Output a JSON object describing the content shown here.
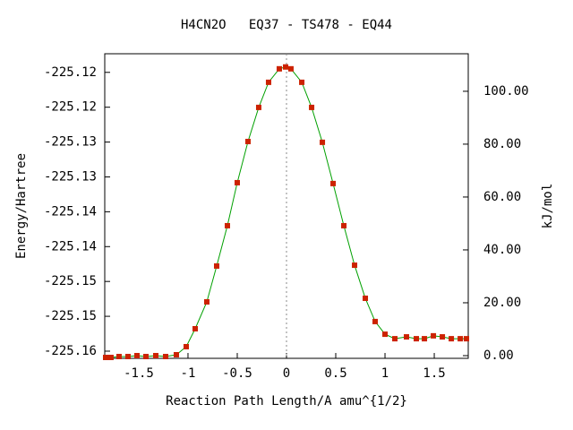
{
  "chart_data": {
    "type": "line",
    "title": "H4CN2O   EQ37 - TS478 - EQ44",
    "xlabel": "Reaction Path Length/A amu^{1/2}",
    "ylabel": "Energy/Hartree",
    "y2label": "kJ/mol",
    "xlim": [
      -1.845,
      1.845
    ],
    "xticks": [
      -1.5,
      -1,
      -0.5,
      0,
      0.5,
      1,
      1.5
    ],
    "ylim": [
      -225.16103,
      -225.11733
    ],
    "yticks": [
      -225.16,
      {
        "value": -225.155,
        "label": "-225.15"
      },
      -225.15,
      {
        "value": -225.145,
        "label": "-225.14"
      },
      -225.14,
      {
        "value": -225.135,
        "label": "-225.13"
      },
      -225.13,
      {
        "value": -225.125,
        "label": "-225.12"
      },
      -225.12
    ],
    "y2lim": [
      -1.02,
      114.2
    ],
    "y2ticks": [
      {
        "value": 0,
        "label": "0.00"
      },
      {
        "value": 20,
        "label": "20.00"
      },
      {
        "value": 40,
        "label": "40.00"
      },
      {
        "value": 60,
        "label": "60.00"
      },
      {
        "value": 80,
        "label": "80.00"
      },
      {
        "value": 100,
        "label": "100.00"
      }
    ],
    "vline": 0,
    "x": [
      -1.836,
      -1.782,
      -1.7,
      -1.609,
      -1.518,
      -1.427,
      -1.327,
      -1.227,
      -1.118,
      -1.018,
      -0.927,
      -0.809,
      -0.709,
      -0.6,
      -0.5,
      -0.391,
      -0.282,
      -0.182,
      -0.073,
      -0.009,
      0.045,
      0.155,
      0.255,
      0.364,
      0.473,
      0.582,
      0.691,
      0.8,
      0.9,
      1.0,
      1.1,
      1.218,
      1.318,
      1.4,
      1.491,
      1.582,
      1.673,
      1.764,
      1.827
    ],
    "series": [
      {
        "color": "#00a000",
        "marker_color": "#cc2200",
        "axis": "y2",
        "values": [
          -0.68,
          -0.68,
          -0.34,
          -0.34,
          0,
          -0.34,
          0,
          -0.34,
          0.34,
          3.39,
          10.17,
          20.34,
          33.9,
          49.15,
          65.42,
          81.0,
          93.9,
          103.4,
          108.5,
          109.2,
          108.5,
          103.4,
          93.9,
          80.7,
          65.1,
          49.15,
          34.2,
          21.7,
          12.9,
          8.1,
          6.4,
          7.1,
          6.4,
          6.4,
          7.5,
          7.1,
          6.4,
          6.4,
          6.4
        ]
      }
    ]
  }
}
